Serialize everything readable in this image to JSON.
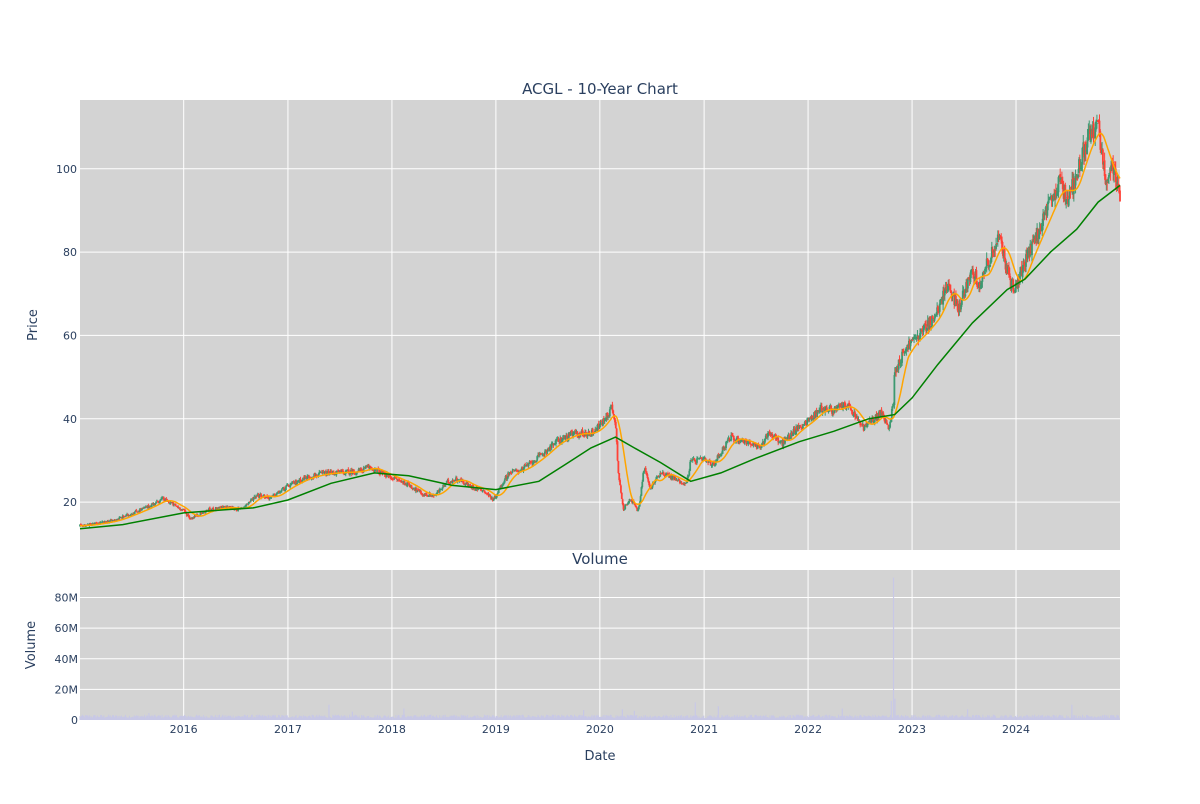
{
  "chart_data": [
    {
      "type": "candlestick",
      "title": "ACGL - 10-Year Chart",
      "ylabel": "Price",
      "ylim": [
        8.5,
        116.5
      ],
      "y_ticks": [
        20,
        40,
        60,
        80,
        100
      ],
      "y_tick_labels": [
        "20",
        "40",
        "60",
        "80",
        "100"
      ],
      "grid": true,
      "up_color": "#3d9970",
      "down_color": "#ff4136",
      "ma_short_color": "#ffa500",
      "ma_long_color": "#008000",
      "plot_bg": "#d3d3d3",
      "price_path": [
        [
          "2015-01-02",
          14.3
        ],
        [
          "2015-03-01",
          14.8
        ],
        [
          "2015-05-01",
          15.6
        ],
        [
          "2015-07-01",
          17.2
        ],
        [
          "2015-09-01",
          19.0
        ],
        [
          "2015-10-20",
          20.8
        ],
        [
          "2015-12-01",
          19.2
        ],
        [
          "2016-01-01",
          18.0
        ],
        [
          "2016-01-25",
          16.0
        ],
        [
          "2016-02-15",
          16.8
        ],
        [
          "2016-04-01",
          18.2
        ],
        [
          "2016-06-01",
          18.8
        ],
        [
          "2016-07-15",
          18.2
        ],
        [
          "2016-08-15",
          19.8
        ],
        [
          "2016-09-15",
          21.8
        ],
        [
          "2016-11-01",
          21.0
        ],
        [
          "2017-01-01",
          23.8
        ],
        [
          "2017-03-01",
          25.8
        ],
        [
          "2017-05-01",
          26.8
        ],
        [
          "2017-07-01",
          27.1
        ],
        [
          "2017-09-01",
          27.3
        ],
        [
          "2017-10-15",
          28.4
        ],
        [
          "2017-12-01",
          26.8
        ],
        [
          "2018-01-15",
          25.5
        ],
        [
          "2018-03-01",
          24.2
        ],
        [
          "2018-04-20",
          21.8
        ],
        [
          "2018-06-01",
          21.6
        ],
        [
          "2018-07-15",
          24.8
        ],
        [
          "2018-08-20",
          25.6
        ],
        [
          "2018-10-01",
          23.8
        ],
        [
          "2018-11-15",
          23.0
        ],
        [
          "2018-12-24",
          20.5
        ],
        [
          "2019-01-10",
          22.8
        ],
        [
          "2019-02-15",
          27.0
        ],
        [
          "2019-04-01",
          27.8
        ],
        [
          "2019-06-01",
          30.8
        ],
        [
          "2019-08-01",
          34.5
        ],
        [
          "2019-10-01",
          36.4
        ],
        [
          "2019-12-01",
          36.5
        ],
        [
          "2020-01-15",
          39.5
        ],
        [
          "2020-02-12",
          42.8
        ],
        [
          "2020-02-25",
          39.0
        ],
        [
          "2020-03-05",
          28.0
        ],
        [
          "2020-03-23",
          18.0
        ],
        [
          "2020-04-15",
          21.0
        ],
        [
          "2020-05-15",
          17.8
        ],
        [
          "2020-06-05",
          28.5
        ],
        [
          "2020-06-25",
          23.2
        ],
        [
          "2020-08-01",
          27.2
        ],
        [
          "2020-09-15",
          25.8
        ],
        [
          "2020-10-30",
          24.2
        ],
        [
          "2020-11-15",
          29.8
        ],
        [
          "2021-01-01",
          30.2
        ],
        [
          "2021-02-01",
          28.8
        ],
        [
          "2021-04-01",
          35.5
        ],
        [
          "2021-06-01",
          34.5
        ],
        [
          "2021-07-15",
          32.8
        ],
        [
          "2021-08-15",
          36.8
        ],
        [
          "2021-10-01",
          34.0
        ],
        [
          "2021-11-20",
          37.5
        ],
        [
          "2022-01-01",
          39.5
        ],
        [
          "2022-02-15",
          42.5
        ],
        [
          "2022-04-01",
          42.0
        ],
        [
          "2022-05-15",
          43.5
        ],
        [
          "2022-07-15",
          37.8
        ],
        [
          "2022-09-15",
          41.5
        ],
        [
          "2022-10-10",
          37.5
        ],
        [
          "2022-10-28",
          44.0
        ],
        [
          "2022-11-01",
          51.5
        ],
        [
          "2022-12-15",
          57.5
        ],
        [
          "2023-02-01",
          60.5
        ],
        [
          "2023-04-01",
          65.5
        ],
        [
          "2023-05-01",
          72.0
        ],
        [
          "2023-06-15",
          66.5
        ],
        [
          "2023-08-01",
          76.5
        ],
        [
          "2023-08-20",
          72.0
        ],
        [
          "2023-10-01",
          78.5
        ],
        [
          "2023-11-01",
          83.5
        ],
        [
          "2023-12-15",
          72.5
        ],
        [
          "2024-01-01",
          71.5
        ],
        [
          "2024-02-01",
          77.5
        ],
        [
          "2024-04-01",
          87.0
        ],
        [
          "2024-06-01",
          96.5
        ],
        [
          "2024-07-01",
          93.0
        ],
        [
          "2024-08-01",
          98.5
        ],
        [
          "2024-08-20",
          104.0
        ],
        [
          "2024-09-20",
          108.0
        ],
        [
          "2024-10-15",
          111.0
        ],
        [
          "2024-11-10",
          97.5
        ],
        [
          "2024-12-05",
          101.0
        ],
        [
          "2024-12-31",
          92.0
        ]
      ],
      "ma_long_path": [
        [
          "2015-01-02",
          13.6
        ],
        [
          "2015-06-01",
          14.6
        ],
        [
          "2016-01-01",
          17.4
        ],
        [
          "2016-06-01",
          18.2
        ],
        [
          "2016-09-01",
          18.6
        ],
        [
          "2017-01-01",
          20.5
        ],
        [
          "2017-06-01",
          24.5
        ],
        [
          "2017-11-01",
          27.0
        ],
        [
          "2018-03-01",
          26.3
        ],
        [
          "2018-08-01",
          24.0
        ],
        [
          "2019-01-01",
          23.0
        ],
        [
          "2019-06-01",
          25.0
        ],
        [
          "2019-09-01",
          29.0
        ],
        [
          "2019-12-01",
          33.0
        ],
        [
          "2020-02-25",
          35.6
        ],
        [
          "2020-05-01",
          33.0
        ],
        [
          "2020-08-01",
          29.5
        ],
        [
          "2020-11-15",
          25.0
        ],
        [
          "2021-03-01",
          27.0
        ],
        [
          "2021-07-01",
          30.5
        ],
        [
          "2021-12-01",
          34.5
        ],
        [
          "2022-04-01",
          37.0
        ],
        [
          "2022-08-01",
          40.0
        ],
        [
          "2022-11-01",
          41.0
        ],
        [
          "2023-01-01",
          45.0
        ],
        [
          "2023-04-01",
          53.0
        ],
        [
          "2023-08-01",
          63.0
        ],
        [
          "2023-12-01",
          71.0
        ],
        [
          "2024-02-01",
          73.5
        ],
        [
          "2024-05-01",
          80.0
        ],
        [
          "2024-08-01",
          85.5
        ],
        [
          "2024-10-15",
          92.0
        ],
        [
          "2024-12-31",
          96.0
        ]
      ]
    },
    {
      "type": "bar",
      "title": "Volume",
      "xlabel": "Date",
      "ylabel": "Volume",
      "xlim": [
        "2015-01-02",
        "2024-12-31"
      ],
      "ylim": [
        0,
        98000000
      ],
      "y_ticks": [
        0,
        20000000,
        40000000,
        60000000,
        80000000
      ],
      "y_tick_labels": [
        "0",
        "20M",
        "40M",
        "60M",
        "80M"
      ],
      "x_tick_labels": [
        "2016",
        "2017",
        "2018",
        "2019",
        "2020",
        "2021",
        "2022",
        "2023",
        "2024"
      ],
      "bar_color": "#c8c8e6",
      "baseline_volume": 2500000,
      "spikes": [
        [
          "2015-09-01",
          4500000
        ],
        [
          "2017-05-25",
          10000000
        ],
        [
          "2017-08-15",
          5500000
        ],
        [
          "2018-02-12",
          7500000
        ],
        [
          "2019-11-05",
          6500000
        ],
        [
          "2020-03-20",
          7000000
        ],
        [
          "2020-05-01",
          6000000
        ],
        [
          "2020-12-01",
          11500000
        ],
        [
          "2021-02-20",
          9000000
        ],
        [
          "2022-05-01",
          7500000
        ],
        [
          "2022-10-20",
          12500000
        ],
        [
          "2022-10-28",
          93000000
        ],
        [
          "2022-11-02",
          14000000
        ],
        [
          "2023-07-15",
          7000000
        ],
        [
          "2024-07-15",
          10000000
        ]
      ]
    }
  ]
}
